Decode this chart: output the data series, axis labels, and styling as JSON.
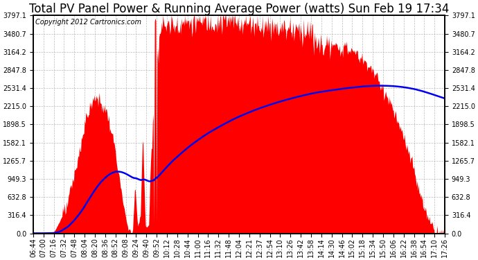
{
  "title": "Total PV Panel Power & Running Average Power (watts) Sun Feb 19 17:34",
  "copyright": "Copyright 2012 Cartronics.com",
  "bg_color": "#ffffff",
  "plot_bg_color": "#ffffff",
  "fill_color": "#ff0000",
  "line_color": "#0000ee",
  "grid_color": "#aaaaaa",
  "yticks": [
    0.0,
    316.4,
    632.8,
    949.3,
    1265.7,
    1582.1,
    1898.5,
    2215.0,
    2531.4,
    2847.8,
    3164.2,
    3480.7,
    3797.1
  ],
  "ymax": 3797.1,
  "xtick_labels": [
    "06:44",
    "07:00",
    "07:16",
    "07:32",
    "07:48",
    "08:04",
    "08:20",
    "08:36",
    "08:52",
    "09:08",
    "09:24",
    "09:40",
    "09:52",
    "10:12",
    "10:28",
    "10:44",
    "11:00",
    "11:16",
    "11:32",
    "11:48",
    "12:04",
    "12:21",
    "12:37",
    "12:54",
    "13:10",
    "13:26",
    "13:42",
    "13:58",
    "14:14",
    "14:30",
    "14:46",
    "15:02",
    "15:18",
    "15:34",
    "15:50",
    "16:06",
    "16:22",
    "16:38",
    "16:54",
    "17:10",
    "17:26"
  ],
  "title_fontsize": 12,
  "copyright_fontsize": 7,
  "tick_fontsize": 7,
  "line_width": 1.8
}
